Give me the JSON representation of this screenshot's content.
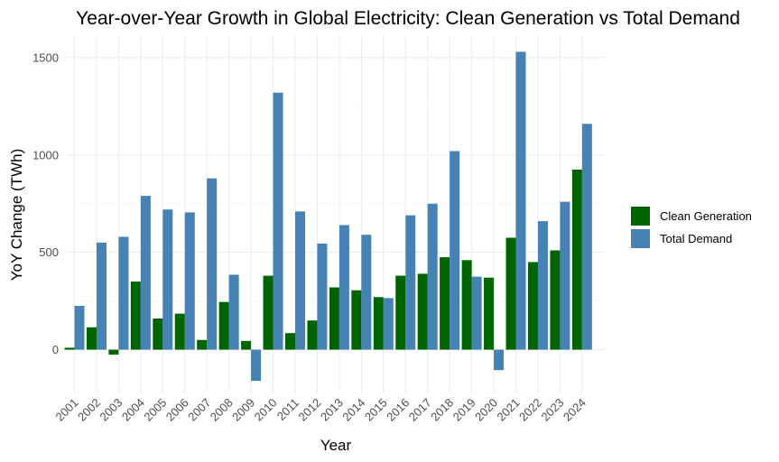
{
  "chart_data": {
    "type": "bar",
    "title": "Year-over-Year Growth in Global Electricity: Clean Generation vs Total Demand",
    "xlabel": "Year",
    "ylabel": "YoY Change (TWh)",
    "ylim": [
      -220,
      1620
    ],
    "yticks": [
      0,
      500,
      1000,
      1500
    ],
    "grid": true,
    "legend_position": "right",
    "categories": [
      "2001",
      "2002",
      "2003",
      "2004",
      "2005",
      "2006",
      "2007",
      "2008",
      "2009",
      "2010",
      "2011",
      "2012",
      "2013",
      "2014",
      "2015",
      "2016",
      "2017",
      "2018",
      "2019",
      "2020",
      "2021",
      "2022",
      "2023",
      "2024"
    ],
    "series": [
      {
        "name": "Clean Generation",
        "color": "#006400",
        "values": [
          10,
          115,
          -25,
          350,
          160,
          185,
          50,
          245,
          45,
          380,
          85,
          150,
          320,
          305,
          270,
          380,
          390,
          475,
          460,
          370,
          575,
          450,
          510,
          925
        ]
      },
      {
        "name": "Total Demand",
        "color": "#4682B4",
        "values": [
          225,
          550,
          580,
          790,
          720,
          705,
          880,
          385,
          -160,
          1320,
          710,
          545,
          640,
          590,
          265,
          690,
          750,
          1020,
          375,
          -105,
          1530,
          660,
          760,
          1160
        ]
      }
    ]
  }
}
